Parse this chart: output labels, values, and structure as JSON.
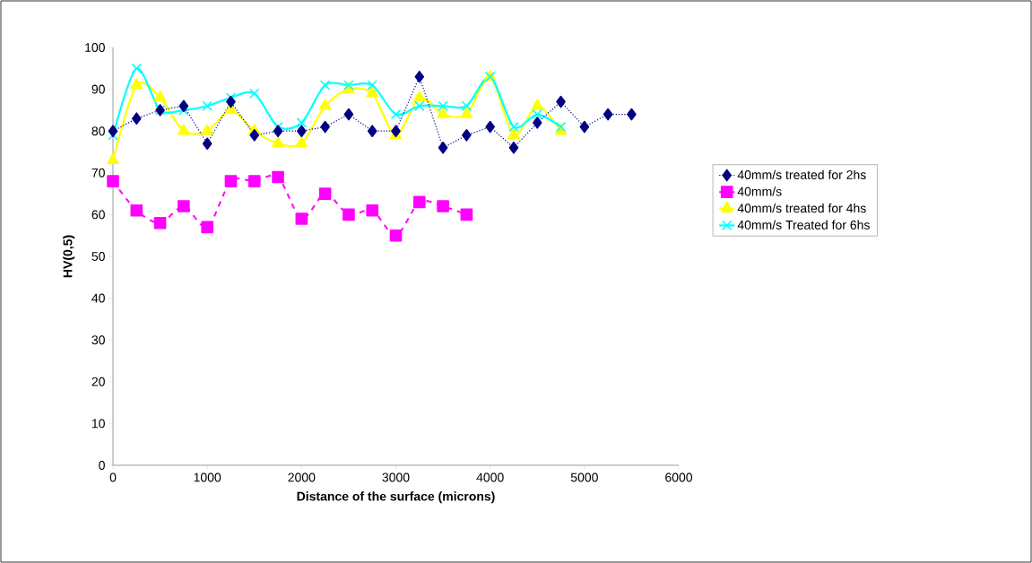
{
  "chart_data": {
    "type": "line",
    "xlabel": "Distance of the surface (microns)",
    "ylabel": "HV(0,5)",
    "xlim": [
      0,
      6000
    ],
    "xticks": [
      0,
      1000,
      2000,
      3000,
      4000,
      5000,
      6000
    ],
    "ylim": [
      0,
      100
    ],
    "yticks": [
      0,
      10,
      20,
      30,
      40,
      50,
      60,
      70,
      80,
      90,
      100
    ],
    "grid": false,
    "legend": "right",
    "series": [
      {
        "name": "40mm/s treated for 2hs",
        "color": "#000080",
        "marker": "diamond",
        "line_style": "dotted",
        "x": [
          0,
          250,
          500,
          750,
          1000,
          1250,
          1500,
          1750,
          2000,
          2250,
          2500,
          2750,
          3000,
          3250,
          3500,
          3750,
          4000,
          4250,
          4500,
          4750,
          5000,
          5250,
          5500
        ],
        "values": [
          80,
          83,
          85,
          86,
          77,
          87,
          79,
          80,
          80,
          81,
          84,
          80,
          80,
          93,
          76,
          79,
          81,
          76,
          82,
          87,
          81,
          84,
          84
        ]
      },
      {
        "name": "40mm/s",
        "color": "#ff00ff",
        "marker": "square",
        "line_style": "dashed",
        "x": [
          0,
          250,
          500,
          750,
          1000,
          1250,
          1500,
          1750,
          2000,
          2250,
          2500,
          2750,
          3000,
          3250,
          3500,
          3750
        ],
        "values": [
          68,
          61,
          58,
          62,
          57,
          68,
          68,
          69,
          59,
          65,
          60,
          61,
          55,
          63,
          62,
          60
        ]
      },
      {
        "name": "40mm/s treated for 4hs",
        "color": "#ffff00",
        "marker": "triangle",
        "line_style": "solid",
        "x": [
          0,
          250,
          500,
          750,
          1000,
          1250,
          1500,
          1750,
          2000,
          2250,
          2500,
          2750,
          3000,
          3250,
          3500,
          3750,
          4000,
          4250,
          4500,
          4750
        ],
        "values": [
          73,
          91,
          88,
          80,
          80,
          85,
          80,
          77,
          77,
          86,
          90,
          89,
          79,
          88,
          84,
          84,
          93,
          79,
          86,
          80
        ]
      },
      {
        "name": "40mm/s Treated for 6hs",
        "color": "#00ffff",
        "marker": "cross",
        "line_style": "solid",
        "x": [
          0,
          250,
          500,
          750,
          1000,
          1250,
          1500,
          1750,
          2000,
          2250,
          2500,
          2750,
          3000,
          3250,
          3500,
          3750,
          4000,
          4250,
          4500,
          4750
        ],
        "values": [
          79,
          95,
          85,
          85,
          86,
          88,
          89,
          81,
          82,
          91,
          91,
          91,
          84,
          86,
          86,
          86,
          93,
          81,
          84,
          81
        ]
      }
    ]
  }
}
